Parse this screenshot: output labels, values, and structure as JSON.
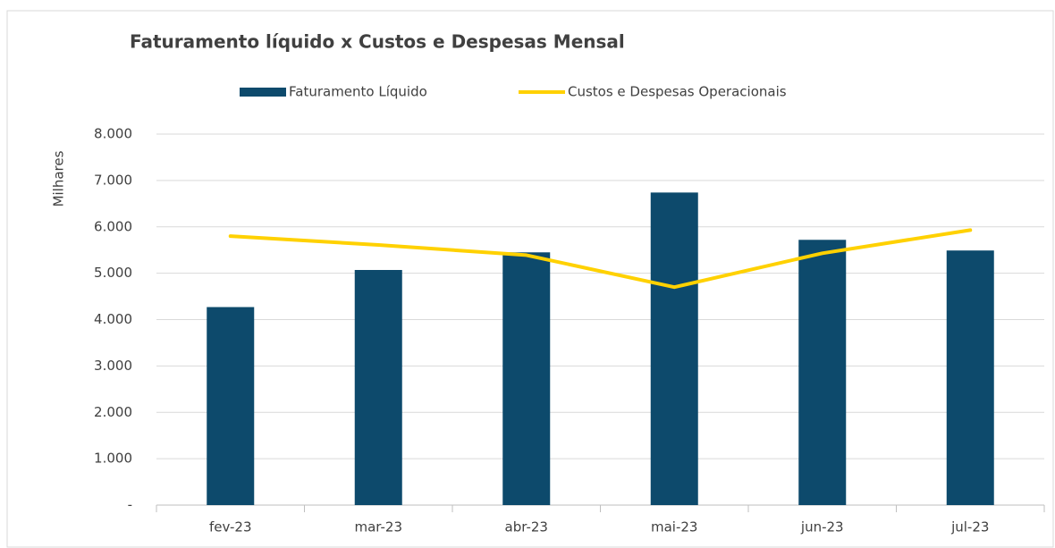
{
  "chart_data": {
    "type": "bar",
    "title": "Faturamento líquido x Custos e Despesas Mensal",
    "y_label": "Milhares",
    "categories": [
      "fev-23",
      "mar-23",
      "abr-23",
      "mai-23",
      "jun-23",
      "jul-23"
    ],
    "series": [
      {
        "name": "Faturamento Líquido",
        "type": "bar",
        "color": "#0d4a6c",
        "values": [
          4270,
          5070,
          5450,
          6740,
          5720,
          5490
        ]
      },
      {
        "name": "Custos e Despesas Operacionais",
        "type": "line",
        "color": "#ffd100",
        "values": [
          5800,
          5610,
          5390,
          4700,
          5430,
          5930
        ]
      }
    ],
    "ylim": [
      0,
      8000
    ],
    "yticks": [
      {
        "value": 0,
        "label": "-"
      },
      {
        "value": 1000,
        "label": "1.000"
      },
      {
        "value": 2000,
        "label": "2.000"
      },
      {
        "value": 3000,
        "label": "3.000"
      },
      {
        "value": 4000,
        "label": "4.000"
      },
      {
        "value": 5000,
        "label": "5.000"
      },
      {
        "value": 6000,
        "label": "6.000"
      },
      {
        "value": 7000,
        "label": "7.000"
      },
      {
        "value": 8000,
        "label": "8.000"
      }
    ],
    "grid": true,
    "legend": "top"
  }
}
